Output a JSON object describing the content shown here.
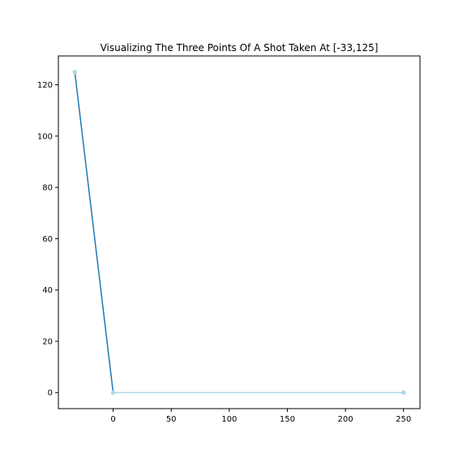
{
  "chart_data": {
    "type": "line",
    "title": "Visualizing The Three Points Of A Shot Taken At [-33,125]",
    "xlabel": "",
    "ylabel": "",
    "xlim": [
      -47.15,
      264.15
    ],
    "ylim": [
      -6.25,
      131.25
    ],
    "xticks": [
      0,
      50,
      100,
      150,
      200,
      250
    ],
    "yticks": [
      0,
      20,
      40,
      60,
      80,
      100,
      120
    ],
    "grid": false,
    "series": [
      {
        "x": [
          -33,
          0
        ],
        "y": [
          125,
          0
        ],
        "color": "#1f77b4"
      },
      {
        "x": [
          0,
          250
        ],
        "y": [
          0,
          0
        ],
        "color": "#add8e6"
      }
    ],
    "points": [
      {
        "x": -33,
        "y": 125,
        "color": "#add8e6"
      },
      {
        "x": 0,
        "y": 0,
        "color": "#add8e6"
      },
      {
        "x": 250,
        "y": 0,
        "color": "#add8e6"
      }
    ]
  }
}
